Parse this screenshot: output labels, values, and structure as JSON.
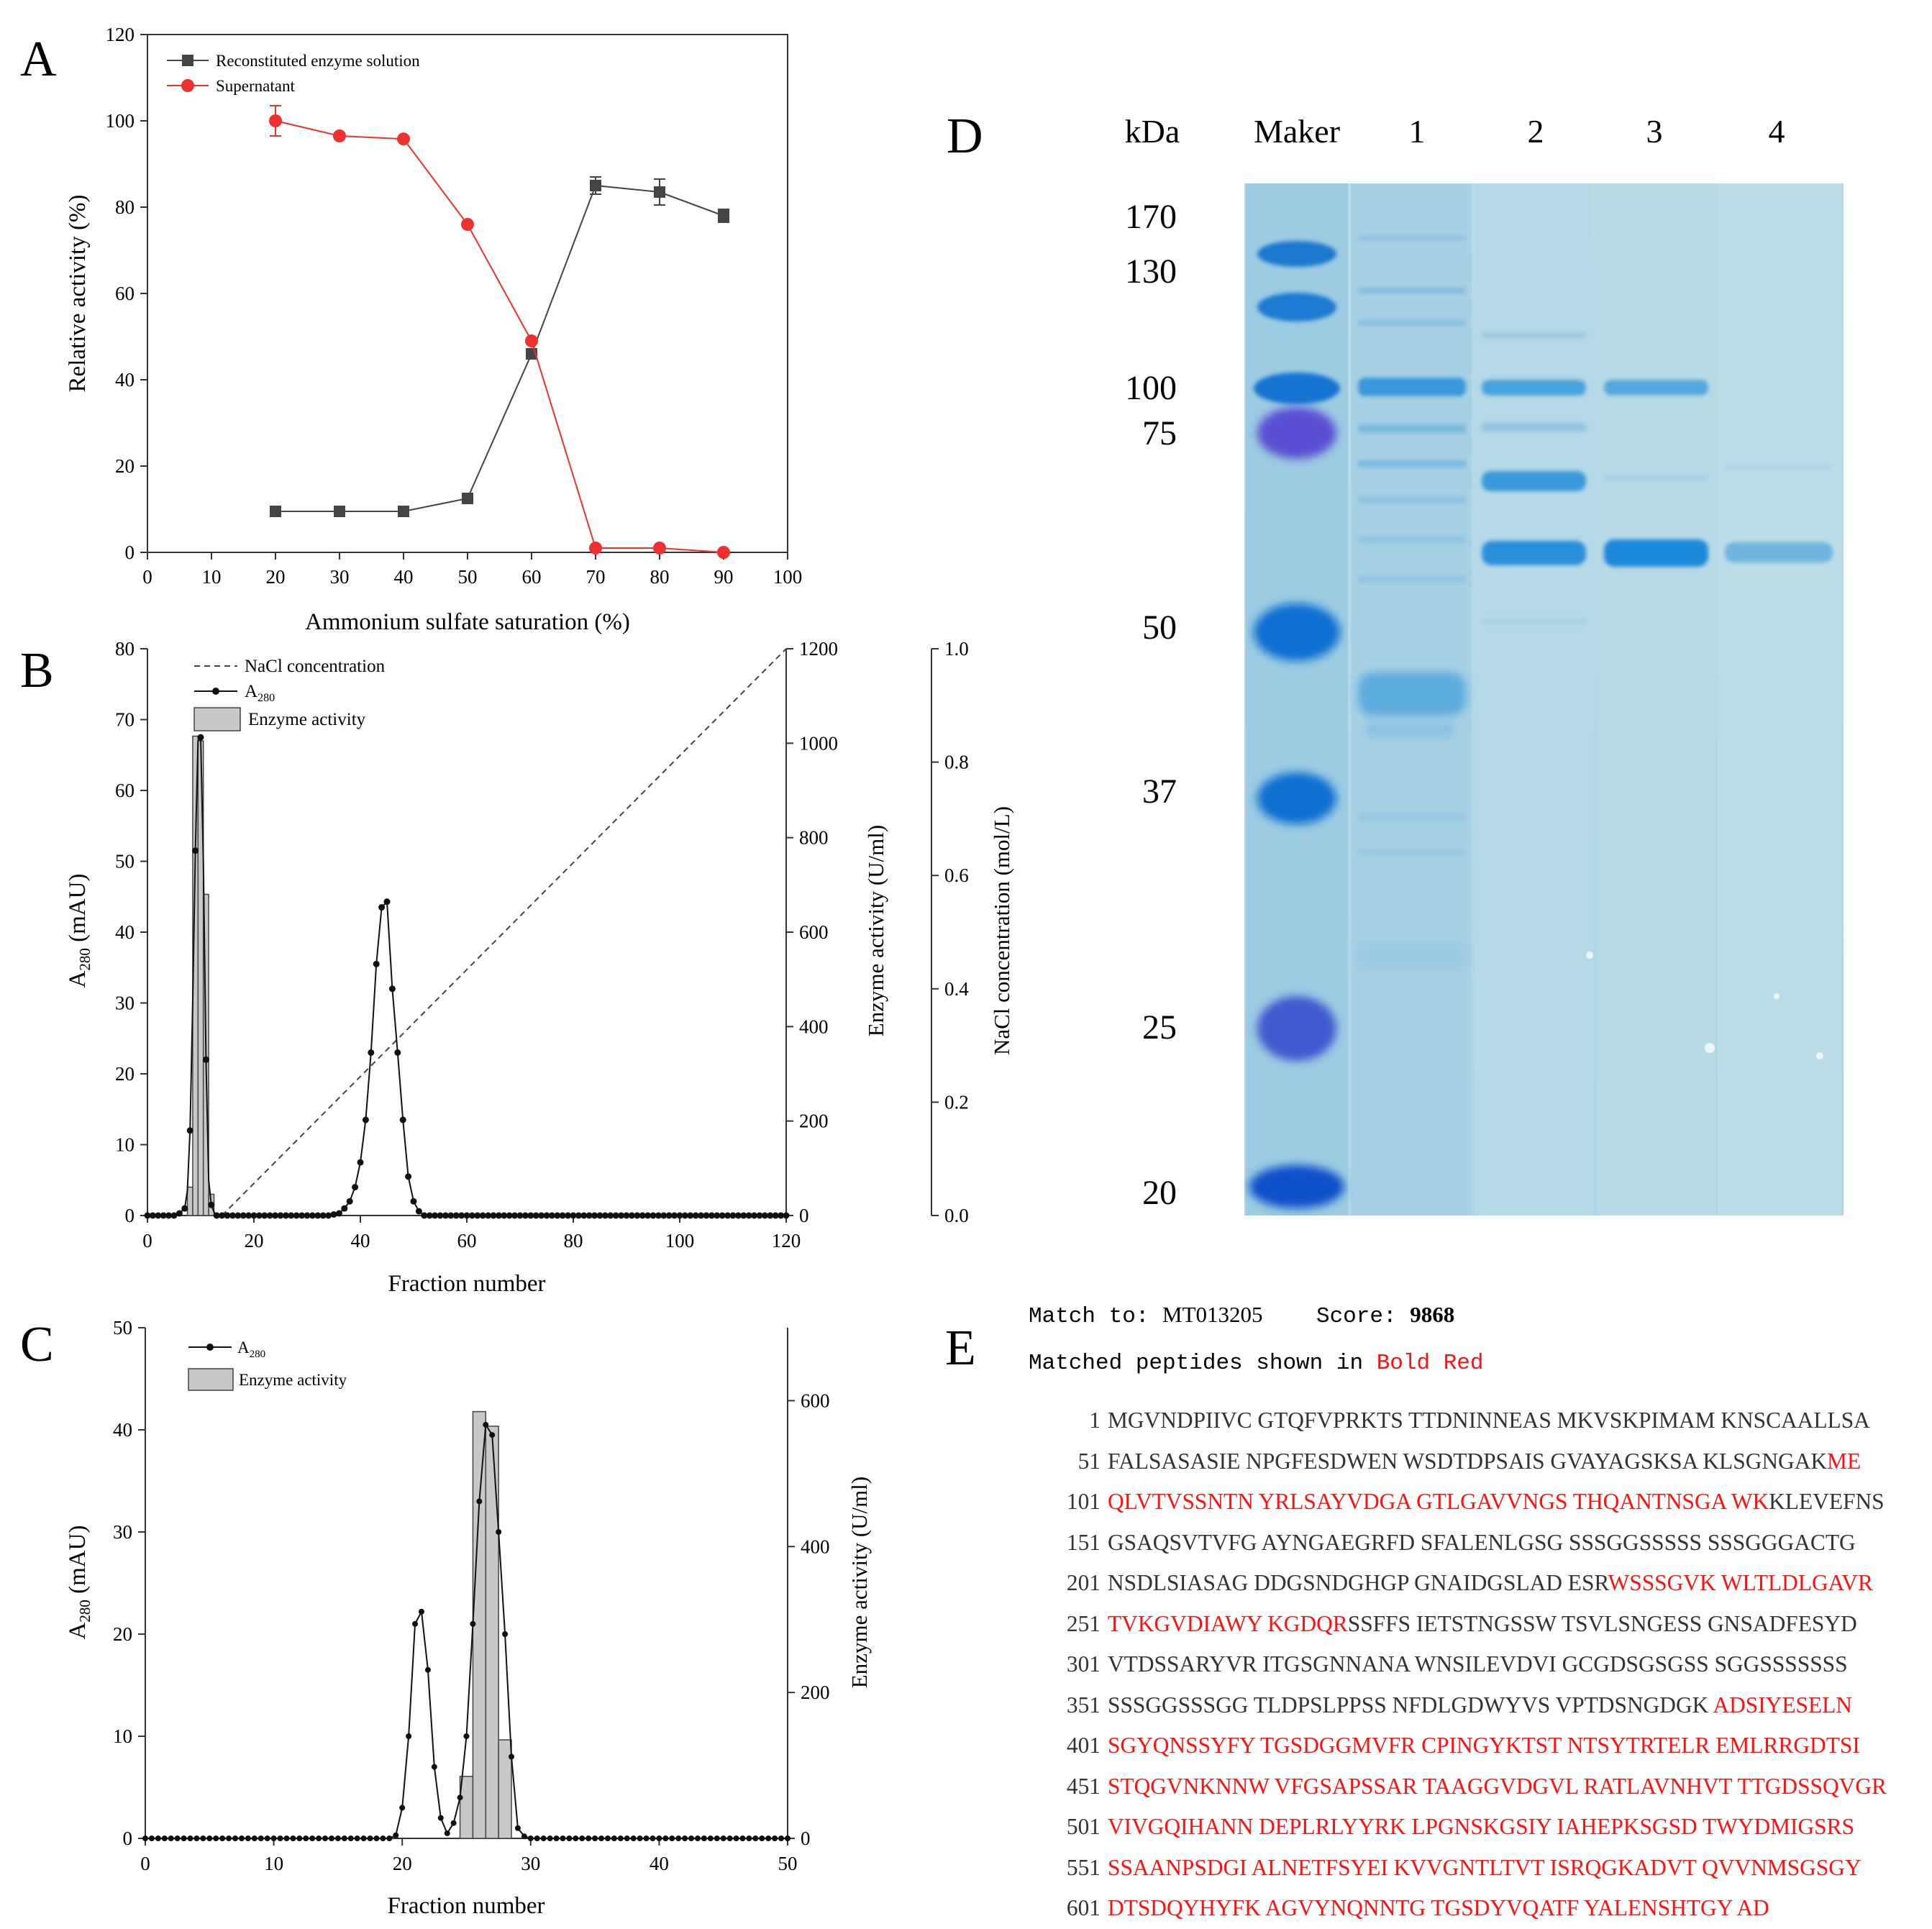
{
  "panels": [
    {
      "label": "A",
      "chart_data": {
        "type": "line",
        "x": [
          20,
          30,
          40,
          50,
          60,
          70,
          80,
          90
        ],
        "series": [
          {
            "name": "Reconstituted enzyme solution",
            "color": "#444444",
            "marker": "square",
            "values": [
              9.5,
              9.5,
              9.5,
              12.5,
              46,
              85,
              83.5,
              78
            ],
            "err": [
              0,
              0,
              0,
              0,
              0,
              2,
              3,
              1.5
            ]
          },
          {
            "name": "Supernatant",
            "color": "#ee3030",
            "marker": "circle",
            "values": [
              100,
              96.5,
              95.8,
              76,
              49,
              1,
              1,
              0
            ],
            "err": [
              3.5,
              0,
              0,
              0,
              0,
              0,
              0,
              0
            ]
          }
        ],
        "xlabel": "Ammonium sulfate saturation (%)",
        "ylabel": "Relative activity (%)",
        "xlim": [
          0,
          100
        ],
        "ylim": [
          0,
          120
        ],
        "xticks": [
          "0",
          "10",
          "20",
          "30",
          "40",
          "50",
          "60",
          "70",
          "80",
          "90",
          "100"
        ],
        "yticks": [
          "0",
          "20",
          "40",
          "60",
          "80",
          "100",
          "120"
        ]
      }
    },
    {
      "label": "B",
      "chart_data": {
        "type": "line",
        "legend": [
          "NaCl concentration",
          "A",
          "280",
          "Enzyme activity"
        ],
        "a280": {
          "x": [
            0,
            5,
            6,
            7,
            7.5,
            8,
            8.5,
            9,
            9.5,
            10,
            10.5,
            11,
            11.5,
            12,
            12.5,
            13,
            14,
            30,
            34,
            36,
            37,
            38,
            39,
            40,
            41,
            42,
            43,
            44,
            45,
            46,
            47,
            48,
            49,
            50,
            51,
            52,
            60,
            120
          ],
          "y": [
            0,
            0,
            0.3,
            1,
            3.5,
            12,
            30,
            51.5,
            67,
            67.5,
            50,
            22,
            5,
            1.5,
            0.5,
            0,
            0,
            0,
            0,
            0.3,
            1,
            2,
            4,
            7.5,
            13.5,
            23,
            35.5,
            43.5,
            44.3,
            32,
            23,
            13.5,
            5.5,
            2,
            0.6,
            0,
            0,
            0
          ]
        },
        "activity": {
          "x": [
            8,
            9,
            10,
            11,
            12
          ],
          "y": [
            60,
            1015,
            1005,
            680,
            45
          ]
        },
        "nacl": {
          "x": [
            14,
            120
          ],
          "y": [
            0,
            1.0
          ]
        },
        "xlabel": "Fraction number",
        "ylabel": "A280 (mAU)",
        "ylabel_main": "A",
        "ylabel_sub": "280",
        "ylabel_unit": " (mAU)",
        "y2label": "Enzyme activity (U/ml)",
        "y3label": "NaCl concentration (mol/L)",
        "xlim": [
          0,
          120
        ],
        "ylim": [
          0,
          80
        ],
        "y2lim": [
          0,
          1200
        ],
        "y3lim": [
          0,
          1.0
        ],
        "xticks": [
          "0",
          "20",
          "40",
          "60",
          "80",
          "100",
          "120"
        ],
        "yticks": [
          "0",
          "10",
          "20",
          "30",
          "40",
          "50",
          "60",
          "70",
          "80"
        ],
        "y2ticks": [
          "0",
          "200",
          "400",
          "600",
          "800",
          "1000",
          "1200"
        ],
        "y3ticks": [
          "0.0",
          "0.2",
          "0.4",
          "0.6",
          "0.8",
          "1.0"
        ]
      }
    },
    {
      "label": "C",
      "chart_data": {
        "type": "line",
        "legend": [
          "A",
          "280",
          "Enzyme activity"
        ],
        "a280": {
          "x": [
            0,
            19,
            19.5,
            20,
            20.5,
            21,
            21.5,
            22,
            22.5,
            23,
            23.5,
            24,
            24.5,
            25,
            25.5,
            26,
            26.5,
            27,
            27.5,
            28,
            28.5,
            29,
            29.5,
            30,
            50
          ],
          "y": [
            0,
            0,
            0.3,
            3,
            10,
            21,
            22.2,
            16.5,
            7,
            2,
            0.5,
            1.5,
            4,
            10,
            21,
            33,
            40.5,
            39.5,
            30,
            20,
            8,
            1,
            0.2,
            0,
            0
          ]
        },
        "activity": {
          "x": [
            25,
            26,
            27,
            28
          ],
          "y": [
            85,
            585,
            565,
            135
          ]
        },
        "xlabel": "Fraction number",
        "ylabel": "A280 (mAU)",
        "ylabel_main": "A",
        "ylabel_sub": "280",
        "ylabel_unit": " (mAU)",
        "y2label": "Enzyme activity (U/ml)",
        "xlim": [
          0,
          50
        ],
        "ylim": [
          0,
          50
        ],
        "y2lim": [
          0,
          700
        ],
        "xticks": [
          "0",
          "10",
          "20",
          "30",
          "40",
          "50"
        ],
        "yticks": [
          "0",
          "10",
          "20",
          "30",
          "40",
          "50"
        ],
        "y2ticks": [
          "0",
          "200",
          "400",
          "600"
        ]
      }
    },
    {
      "label": "D",
      "gel": {
        "unit": "kDa",
        "lanes": [
          "Maker",
          "1",
          "2",
          "3",
          "4"
        ],
        "markers": [
          "170",
          "130",
          "100",
          "75",
          "50",
          "37",
          "25",
          "20"
        ]
      }
    },
    {
      "label": "E"
    }
  ],
  "mass_spec": {
    "match_label": "Match to:",
    "match_id": "MT013205",
    "score_label": "Score:",
    "score": "9868",
    "matched_note_prefix": "Matched peptides shown in ",
    "matched_note_red": "Bold Red",
    "rows": [
      {
        "n": "1",
        "segments": [
          {
            "t": "MGVNDPIIVC GTQFVPRKTS TTDNINNEAS MKVSKPIMAM KNSCAALLSA",
            "red": false
          }
        ]
      },
      {
        "n": "51",
        "segments": [
          {
            "t": "FALSASASIE NPGFESDWEN WSDTDPSAIS GVAYAGSKSA KLSGNGAK",
            "red": false
          },
          {
            "t": "ME",
            "red": true
          }
        ]
      },
      {
        "n": "101",
        "segments": [
          {
            "t": "QLVTVSSNTN YRLSAYVDGA GTLGAVVNGS THQANTNSGA WK",
            "red": true
          },
          {
            "t": "KLEVEFNS",
            "red": false
          }
        ]
      },
      {
        "n": "151",
        "segments": [
          {
            "t": "GSAQSVTVFG AYNGAEGRFD SFALENLGSG SSSGGSSSSS SSSGGGACTG",
            "red": false
          }
        ]
      },
      {
        "n": "201",
        "segments": [
          {
            "t": "NSDLSIASAG DDGSNDGHGP GNAIDGSLAD ESR",
            "red": false
          },
          {
            "t": "WSSSGVK WLTLDLGAVR",
            "red": true
          }
        ]
      },
      {
        "n": "251",
        "segments": [
          {
            "t": "TVKGVDIAWY KGDQR",
            "red": true
          },
          {
            "t": "SSFFS IETSTNGSSW TSVLSNGESS GNSADFESYD",
            "red": false
          }
        ]
      },
      {
        "n": "301",
        "segments": [
          {
            "t": "VTDSSARYVR ITGSGNNANA WNSILEVDVI GCGDSGSGSS SGGSSSSSSS",
            "red": false
          }
        ]
      },
      {
        "n": "351",
        "segments": [
          {
            "t": "SSSGGSSSGG TLDPSLPPSS NFDLGDWYVS VPTDSNGDGK ",
            "red": false
          },
          {
            "t": "ADSIYESELN",
            "red": true
          }
        ]
      },
      {
        "n": "401",
        "segments": [
          {
            "t": "SGYQNSSYFY TGSDGGMVFR CPINGYKTST NTSYTRTELR EMLRRGDTSI",
            "red": true
          }
        ]
      },
      {
        "n": "451",
        "segments": [
          {
            "t": "STQGVNKNNW VFGSAPSSAR TAAGGVDGVL RATLAVNHVT TTGDSSQVGR",
            "red": true
          }
        ]
      },
      {
        "n": "501",
        "segments": [
          {
            "t": "VIVGQIHANN DEPLRLYYRK LPGNSKGSIY IAHEPKSGSD TWYDMIGSRS",
            "red": true
          }
        ]
      },
      {
        "n": "551",
        "segments": [
          {
            "t": "SSAANPSDGI ALNETFSYEI KVVGNTLTVT ISRQGKADVT QVVNMSGSGY",
            "red": true
          }
        ]
      },
      {
        "n": "601",
        "segments": [
          {
            "t": "DTSDQYHYFK AGVYNQNNTG TGSDYVQATF YALENSHTGY AD",
            "red": true
          }
        ]
      }
    ]
  }
}
